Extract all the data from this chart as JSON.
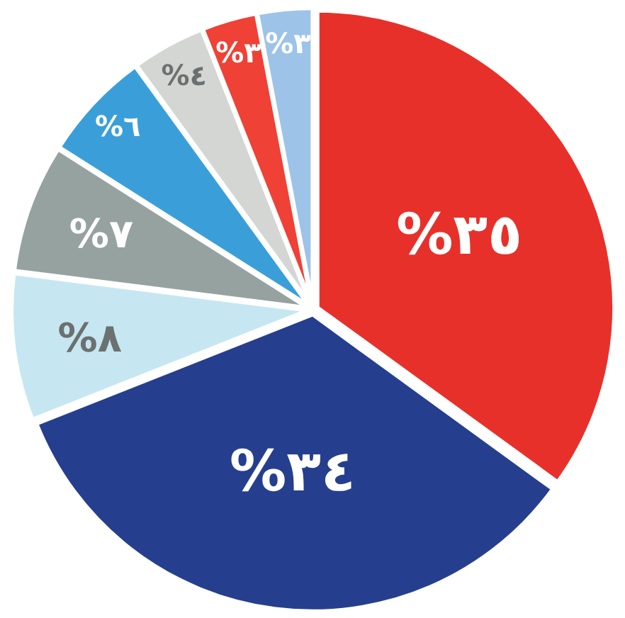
{
  "chart_data": {
    "type": "pie",
    "categories": [
      null,
      null,
      null,
      null,
      null,
      null,
      null,
      null
    ],
    "values": [
      35,
      34,
      8,
      7,
      6,
      4,
      3,
      3
    ],
    "value_labels": [
      "%٣٥",
      "%٣٤",
      "%٨",
      "%٧",
      "%٦",
      "%٤",
      "%٣",
      "%٣"
    ],
    "colors": [
      "#e8302a",
      "#253f8e",
      "#c6e7f1",
      "#96a2a0",
      "#3a9fd9",
      "#d4d6d3",
      "#ef4136",
      "#9dc3e8"
    ]
  }
}
